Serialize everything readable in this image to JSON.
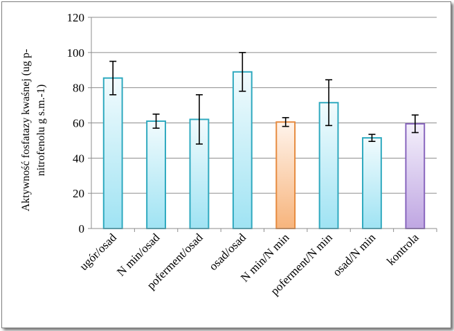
{
  "chart_data": {
    "type": "bar",
    "title": "",
    "xlabel": "",
    "ylabel": "Aktywność fosfatazy kwaśnej (ug p-nitrofenolu g s.m.-1)",
    "ylabel_lines": [
      "Aktywność fosfatazy kwaśnej (ug p-",
      "nitrofenolu g  s.m.-1)"
    ],
    "ylim": [
      0,
      120
    ],
    "yticks": [
      0,
      20,
      40,
      60,
      80,
      100,
      120
    ],
    "grid": true,
    "legend": "none",
    "categories": [
      "ugór/osad",
      "N min/osad",
      "poferment/osad",
      "osad/osad",
      "N min/N min",
      "poferment/N min",
      "osad/N min",
      "kontrola"
    ],
    "values": [
      85.5,
      61,
      62,
      89,
      60.5,
      71.5,
      51.5,
      59.5
    ],
    "errors": [
      9.5,
      4,
      14,
      11,
      2.5,
      13,
      2,
      5
    ],
    "colors": {
      "default_fill_top": "#f2fbfd",
      "default_fill_bottom": "#9fe3f3",
      "default_stroke": "#2ea9bf",
      "nmin_fill_top": "#fff4ec",
      "nmin_fill_bottom": "#f7b47c",
      "nmin_stroke": "#e68a3e",
      "control_fill_top": "#f4f0fb",
      "control_fill_bottom": "#bfa6e2",
      "control_stroke": "#8764bd",
      "grid": "#8c8c8c"
    },
    "bar_styles": [
      "default",
      "default",
      "default",
      "default",
      "nmin",
      "default",
      "default",
      "control"
    ]
  }
}
